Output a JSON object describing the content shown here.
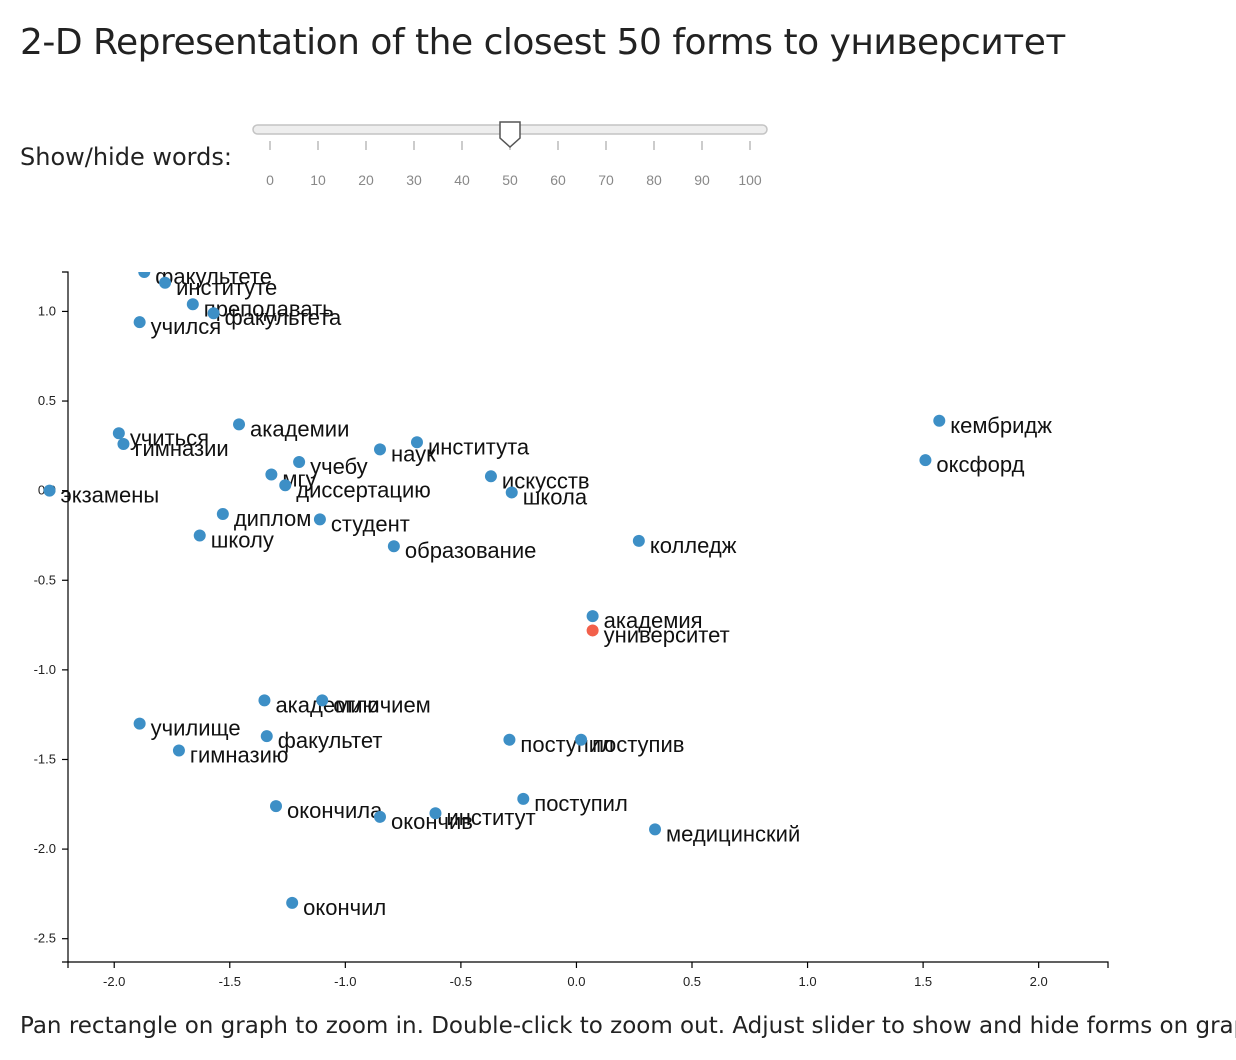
{
  "title": "2-D Representation of the closest 50 forms to университет",
  "slider": {
    "label": "Show/hide words:",
    "value": 50,
    "ticks": [
      0,
      10,
      20,
      30,
      40,
      50,
      60,
      70,
      80,
      90,
      100
    ]
  },
  "instructions": "Pan rectangle on graph to zoom in. Double-click to zoom out. Adjust slider to show and hide forms on graph.",
  "colors": {
    "point": "#3d8fc6",
    "target": "#f2604b",
    "axis": "#000000"
  },
  "chart_data": {
    "type": "scatter",
    "xlim": [
      -2.2,
      2.3
    ],
    "ylim": [
      -2.63,
      1.22
    ],
    "xticks": [
      -2.0,
      -1.5,
      -1.0,
      -0.5,
      0.0,
      0.5,
      1.0,
      1.5,
      2.0
    ],
    "xtick_labels": [
      "-2.0",
      "-1.5",
      "-1.0",
      "-0.5",
      "0.0",
      "0.5",
      "1.0",
      "1.5",
      "2.0"
    ],
    "yticks": [
      1.0,
      0.5,
      0.0,
      -0.5,
      -1.0,
      -1.5,
      -2.0,
      -2.5
    ],
    "ytick_labels": [
      "1.0",
      "0.5",
      "0.0",
      "-0.5",
      "-1.0",
      "-1.5",
      "-2.0",
      "-2.5"
    ],
    "target": "университет",
    "points": [
      {
        "word": "факультете",
        "x": -1.87,
        "y": 1.22
      },
      {
        "word": "институте",
        "x": -1.78,
        "y": 1.16
      },
      {
        "word": "преподавать",
        "x": -1.66,
        "y": 1.04
      },
      {
        "word": "факультета",
        "x": -1.57,
        "y": 0.99
      },
      {
        "word": "учился",
        "x": -1.89,
        "y": 0.94
      },
      {
        "word": "учиться",
        "x": -1.98,
        "y": 0.32
      },
      {
        "word": "гимназии",
        "x": -1.96,
        "y": 0.26
      },
      {
        "word": "академии",
        "x": -1.46,
        "y": 0.37
      },
      {
        "word": "наук",
        "x": -0.85,
        "y": 0.23
      },
      {
        "word": "института",
        "x": -0.69,
        "y": 0.27
      },
      {
        "word": "учебу",
        "x": -1.2,
        "y": 0.16
      },
      {
        "word": "мгу",
        "x": -1.32,
        "y": 0.09
      },
      {
        "word": "диссертацию",
        "x": -1.26,
        "y": 0.03
      },
      {
        "word": "экзамены",
        "x": -2.28,
        "y": 0.0
      },
      {
        "word": "искусств",
        "x": -0.37,
        "y": 0.08
      },
      {
        "word": "школа",
        "x": -0.28,
        "y": -0.01
      },
      {
        "word": "диплом",
        "x": -1.53,
        "y": -0.13
      },
      {
        "word": "студент",
        "x": -1.11,
        "y": -0.16
      },
      {
        "word": "школу",
        "x": -1.63,
        "y": -0.25
      },
      {
        "word": "образование",
        "x": -0.79,
        "y": -0.31
      },
      {
        "word": "колледж",
        "x": 0.27,
        "y": -0.28
      },
      {
        "word": "кембридж",
        "x": 1.57,
        "y": 0.39
      },
      {
        "word": "оксфорд",
        "x": 1.51,
        "y": 0.17
      },
      {
        "word": "академия",
        "x": 0.07,
        "y": -0.7
      },
      {
        "word": "университет",
        "x": 0.07,
        "y": -0.78,
        "target": true
      },
      {
        "word": "академию",
        "x": -1.35,
        "y": -1.17
      },
      {
        "word": "отличием",
        "x": -1.1,
        "y": -1.17
      },
      {
        "word": "училище",
        "x": -1.89,
        "y": -1.3
      },
      {
        "word": "факультет",
        "x": -1.34,
        "y": -1.37
      },
      {
        "word": "гимназию",
        "x": -1.72,
        "y": -1.45
      },
      {
        "word": "поступил",
        "x": -0.29,
        "y": -1.39
      },
      {
        "word": "поступив",
        "x": 0.02,
        "y": -1.39
      },
      {
        "word": "окончила",
        "x": -1.3,
        "y": -1.76
      },
      {
        "word": "окончив",
        "x": -0.85,
        "y": -1.82
      },
      {
        "word": "институт",
        "x": -0.61,
        "y": -1.8
      },
      {
        "word": "поступил",
        "x": -0.23,
        "y": -1.72
      },
      {
        "word": "медицинский",
        "x": 0.34,
        "y": -1.89
      },
      {
        "word": "окончил",
        "x": -1.23,
        "y": -2.3
      }
    ]
  }
}
